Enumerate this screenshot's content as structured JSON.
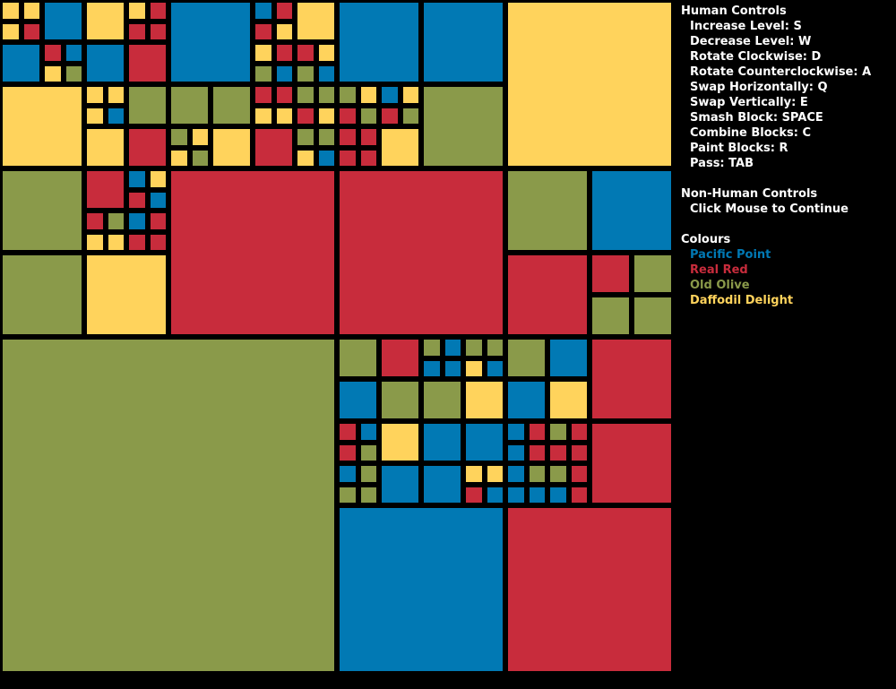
{
  "colors": {
    "blue": "#0179B4",
    "red": "#C82C3C",
    "olive": "#8A9A4A",
    "yellow": "#FFD35C",
    "background": "#000000"
  },
  "controls": {
    "human_title": "Human Controls",
    "human_items": [
      "Increase Level: S",
      "Decrease Level: W",
      "Rotate Clockwise: D",
      "Rotate Counterclockwise: A",
      "Swap Horizontally: Q",
      "Swap Vertically: E",
      "Smash Block: SPACE",
      "Combine Blocks: C",
      "Paint Blocks: R",
      "Pass: TAB"
    ],
    "nonhuman_title": "Non-Human Controls",
    "nonhuman_items": [
      "Click Mouse to Continue"
    ],
    "colours_title": "Colours",
    "colour_items": [
      {
        "label": "Pacific Point",
        "color": "#0179B4"
      },
      {
        "label": "Real Red",
        "color": "#C82C3C"
      },
      {
        "label": "Old Olive",
        "color": "#8A9A4A"
      },
      {
        "label": "Daffodil Delight",
        "color": "#FFD35C"
      }
    ]
  },
  "board": {
    "grid_cells": 32,
    "blocks": [
      [
        "a0001",
        0,
        0,
        1,
        1,
        "yellow"
      ],
      [
        "a0002",
        1,
        0,
        1,
        1,
        "yellow"
      ],
      [
        "a0003",
        2,
        0,
        2,
        2,
        "blue"
      ],
      [
        "a0004",
        0,
        1,
        1,
        1,
        "yellow"
      ],
      [
        "a0005",
        1,
        1,
        1,
        1,
        "red"
      ],
      [
        "a0006",
        0,
        2,
        2,
        2,
        "blue"
      ],
      [
        "a0007",
        2,
        2,
        1,
        1,
        "red"
      ],
      [
        "a0008",
        3,
        2,
        1,
        1,
        "blue"
      ],
      [
        "a0009",
        2,
        3,
        1,
        1,
        "yellow"
      ],
      [
        "a0010",
        3,
        3,
        1,
        1,
        "olive"
      ],
      [
        "a0011",
        4,
        0,
        2,
        2,
        "yellow"
      ],
      [
        "a0012",
        6,
        0,
        1,
        1,
        "yellow"
      ],
      [
        "a0013",
        7,
        0,
        1,
        1,
        "red"
      ],
      [
        "a0014",
        6,
        1,
        1,
        1,
        "red"
      ],
      [
        "a0015",
        7,
        1,
        1,
        1,
        "red"
      ],
      [
        "a0016",
        4,
        2,
        2,
        2,
        "blue"
      ],
      [
        "a0017",
        6,
        2,
        2,
        2,
        "red"
      ],
      [
        "a0018",
        8,
        0,
        4,
        4,
        "blue"
      ],
      [
        "a0019",
        12,
        0,
        1,
        1,
        "blue"
      ],
      [
        "a0020",
        13,
        0,
        1,
        1,
        "red"
      ],
      [
        "a0021",
        14,
        0,
        2,
        2,
        "yellow"
      ],
      [
        "a0022",
        12,
        1,
        1,
        1,
        "red"
      ],
      [
        "a0023",
        13,
        1,
        1,
        1,
        "yellow"
      ],
      [
        "a0024",
        12,
        2,
        1,
        1,
        "yellow"
      ],
      [
        "a0025",
        13,
        2,
        1,
        1,
        "red"
      ],
      [
        "a0026",
        14,
        2,
        1,
        1,
        "red"
      ],
      [
        "a0027",
        15,
        2,
        1,
        1,
        "yellow"
      ],
      [
        "a0028",
        12,
        3,
        1,
        1,
        "olive"
      ],
      [
        "a0029",
        13,
        3,
        1,
        1,
        "blue"
      ],
      [
        "a0030",
        14,
        3,
        1,
        1,
        "olive"
      ],
      [
        "a0031",
        15,
        3,
        1,
        1,
        "blue"
      ],
      [
        "a0032",
        16,
        0,
        4,
        4,
        "blue"
      ],
      [
        "a0033",
        20,
        0,
        4,
        4,
        "blue"
      ],
      [
        "a0034",
        0,
        4,
        4,
        4,
        "yellow"
      ],
      [
        "a0035",
        4,
        4,
        1,
        1,
        "yellow"
      ],
      [
        "a0036",
        5,
        4,
        1,
        1,
        "yellow"
      ],
      [
        "a0037",
        4,
        5,
        1,
        1,
        "yellow"
      ],
      [
        "a0038",
        5,
        5,
        1,
        1,
        "blue"
      ],
      [
        "a0039",
        6,
        4,
        2,
        2,
        "olive"
      ],
      [
        "a0040",
        4,
        6,
        2,
        2,
        "yellow"
      ],
      [
        "a0041",
        6,
        6,
        2,
        2,
        "red"
      ],
      [
        "a0042",
        8,
        4,
        2,
        2,
        "olive"
      ],
      [
        "a0043",
        10,
        4,
        2,
        2,
        "olive"
      ],
      [
        "a0044",
        8,
        6,
        1,
        1,
        "olive"
      ],
      [
        "a0045",
        9,
        6,
        1,
        1,
        "yellow"
      ],
      [
        "a0046",
        8,
        7,
        1,
        1,
        "yellow"
      ],
      [
        "a0047",
        9,
        7,
        1,
        1,
        "olive"
      ],
      [
        "a0048",
        10,
        6,
        2,
        2,
        "yellow"
      ],
      [
        "a0049",
        12,
        4,
        1,
        1,
        "red"
      ],
      [
        "a0050",
        13,
        4,
        1,
        1,
        "red"
      ],
      [
        "a0051",
        12,
        5,
        1,
        1,
        "yellow"
      ],
      [
        "a0052",
        13,
        5,
        1,
        1,
        "yellow"
      ],
      [
        "a0053",
        14,
        4,
        1,
        1,
        "olive"
      ],
      [
        "a0054",
        15,
        4,
        1,
        1,
        "olive"
      ],
      [
        "a0055",
        14,
        5,
        1,
        1,
        "red"
      ],
      [
        "a0056",
        15,
        5,
        1,
        1,
        "yellow"
      ],
      [
        "a0057",
        12,
        6,
        2,
        2,
        "red"
      ],
      [
        "a0058",
        14,
        6,
        1,
        1,
        "olive"
      ],
      [
        "a0059",
        15,
        6,
        1,
        1,
        "olive"
      ],
      [
        "a0060",
        14,
        7,
        1,
        1,
        "yellow"
      ],
      [
        "a0061",
        15,
        7,
        1,
        1,
        "blue"
      ],
      [
        "a0062",
        16,
        4,
        1,
        1,
        "olive"
      ],
      [
        "a0063",
        17,
        4,
        1,
        1,
        "yellow"
      ],
      [
        "a0064",
        16,
        5,
        1,
        1,
        "red"
      ],
      [
        "a0065",
        17,
        5,
        1,
        1,
        "olive"
      ],
      [
        "a0066",
        18,
        4,
        1,
        1,
        "blue"
      ],
      [
        "a0067",
        19,
        4,
        1,
        1,
        "yellow"
      ],
      [
        "a0068",
        18,
        5,
        1,
        1,
        "red"
      ],
      [
        "a0069",
        19,
        5,
        1,
        1,
        "olive"
      ],
      [
        "a0070",
        16,
        6,
        1,
        1,
        "red"
      ],
      [
        "a0071",
        17,
        6,
        1,
        1,
        "red"
      ],
      [
        "a0072",
        16,
        7,
        1,
        1,
        "red"
      ],
      [
        "a0073",
        17,
        7,
        1,
        1,
        "red"
      ],
      [
        "a0074",
        18,
        6,
        2,
        2,
        "yellow"
      ],
      [
        "a0075",
        20,
        4,
        4,
        4,
        "olive"
      ],
      [
        "a0076",
        24,
        0,
        8,
        8,
        "yellow"
      ],
      [
        "a0077",
        0,
        8,
        4,
        4,
        "olive"
      ],
      [
        "a0078",
        4,
        8,
        2,
        2,
        "red"
      ],
      [
        "a0079",
        6,
        8,
        1,
        1,
        "blue"
      ],
      [
        "a0080",
        7,
        8,
        1,
        1,
        "yellow"
      ],
      [
        "a0081",
        6,
        9,
        1,
        1,
        "red"
      ],
      [
        "a0082",
        7,
        9,
        1,
        1,
        "blue"
      ],
      [
        "a0083",
        4,
        10,
        1,
        1,
        "red"
      ],
      [
        "a0084",
        5,
        10,
        1,
        1,
        "olive"
      ],
      [
        "a0085",
        4,
        11,
        1,
        1,
        "yellow"
      ],
      [
        "a0086",
        5,
        11,
        1,
        1,
        "yellow"
      ],
      [
        "a0087",
        6,
        10,
        1,
        1,
        "blue"
      ],
      [
        "a0088",
        7,
        10,
        1,
        1,
        "red"
      ],
      [
        "a0089",
        6,
        11,
        1,
        1,
        "red"
      ],
      [
        "a0090",
        7,
        11,
        1,
        1,
        "red"
      ],
      [
        "a0091",
        0,
        12,
        4,
        4,
        "olive"
      ],
      [
        "a0092",
        4,
        12,
        4,
        4,
        "yellow"
      ],
      [
        "a0093",
        8,
        8,
        8,
        8,
        "red"
      ],
      [
        "a0094",
        16,
        8,
        8,
        8,
        "red"
      ],
      [
        "a0095",
        24,
        8,
        4,
        4,
        "olive"
      ],
      [
        "a0096",
        28,
        8,
        4,
        4,
        "blue"
      ],
      [
        "a0097",
        24,
        12,
        4,
        4,
        "red"
      ],
      [
        "a0098",
        28,
        12,
        2,
        2,
        "red"
      ],
      [
        "a0099",
        30,
        12,
        2,
        2,
        "olive"
      ],
      [
        "a0100",
        28,
        14,
        2,
        2,
        "olive"
      ],
      [
        "a0101",
        30,
        14,
        2,
        2,
        "olive"
      ],
      [
        "a0102",
        0,
        16,
        16,
        16,
        "olive"
      ],
      [
        "a0103",
        16,
        16,
        2,
        2,
        "olive"
      ],
      [
        "a0104",
        18,
        16,
        2,
        2,
        "red"
      ],
      [
        "a0105",
        20,
        16,
        1,
        1,
        "olive"
      ],
      [
        "a0106",
        21,
        16,
        1,
        1,
        "blue"
      ],
      [
        "a0107",
        20,
        17,
        1,
        1,
        "blue"
      ],
      [
        "a0108",
        21,
        17,
        1,
        1,
        "blue"
      ],
      [
        "a0109",
        22,
        16,
        1,
        1,
        "olive"
      ],
      [
        "a0110",
        23,
        16,
        1,
        1,
        "olive"
      ],
      [
        "a0111",
        22,
        17,
        1,
        1,
        "yellow"
      ],
      [
        "a0112",
        23,
        17,
        1,
        1,
        "blue"
      ],
      [
        "a0113",
        16,
        18,
        2,
        2,
        "blue"
      ],
      [
        "a0114",
        18,
        18,
        2,
        2,
        "olive"
      ],
      [
        "a0115",
        20,
        18,
        2,
        2,
        "olive"
      ],
      [
        "a0116",
        22,
        18,
        2,
        2,
        "yellow"
      ],
      [
        "a0117",
        24,
        16,
        2,
        2,
        "olive"
      ],
      [
        "a0118",
        26,
        16,
        2,
        2,
        "blue"
      ],
      [
        "a0119",
        24,
        18,
        2,
        2,
        "blue"
      ],
      [
        "a0120",
        26,
        18,
        2,
        2,
        "yellow"
      ],
      [
        "a0121",
        28,
        16,
        4,
        4,
        "red"
      ],
      [
        "a0122",
        16,
        20,
        1,
        1,
        "red"
      ],
      [
        "a0123",
        17,
        20,
        1,
        1,
        "blue"
      ],
      [
        "a0124",
        16,
        21,
        1,
        1,
        "red"
      ],
      [
        "a0125",
        17,
        21,
        1,
        1,
        "olive"
      ],
      [
        "a0126",
        16,
        22,
        1,
        1,
        "blue"
      ],
      [
        "a0127",
        17,
        22,
        1,
        1,
        "olive"
      ],
      [
        "a0128",
        16,
        23,
        1,
        1,
        "olive"
      ],
      [
        "a0129",
        17,
        23,
        1,
        1,
        "olive"
      ],
      [
        "a0130",
        18,
        20,
        2,
        2,
        "yellow"
      ],
      [
        "a0131",
        18,
        22,
        2,
        2,
        "blue"
      ],
      [
        "a0132",
        20,
        20,
        2,
        2,
        "blue"
      ],
      [
        "a0133",
        22,
        20,
        2,
        2,
        "blue"
      ],
      [
        "a0134",
        20,
        22,
        2,
        2,
        "blue"
      ],
      [
        "a0135",
        22,
        22,
        1,
        1,
        "yellow"
      ],
      [
        "a0136",
        23,
        22,
        1,
        1,
        "yellow"
      ],
      [
        "a0137",
        22,
        23,
        1,
        1,
        "red"
      ],
      [
        "a0138",
        23,
        23,
        1,
        1,
        "blue"
      ],
      [
        "a0139",
        24,
        20,
        1,
        1,
        "blue"
      ],
      [
        "a0140",
        25,
        20,
        1,
        1,
        "red"
      ],
      [
        "a0141",
        24,
        21,
        1,
        1,
        "blue"
      ],
      [
        "a0142",
        25,
        21,
        1,
        1,
        "red"
      ],
      [
        "a0143",
        26,
        20,
        1,
        1,
        "olive"
      ],
      [
        "a0144",
        27,
        20,
        1,
        1,
        "red"
      ],
      [
        "a0145",
        26,
        21,
        1,
        1,
        "red"
      ],
      [
        "a0146",
        27,
        21,
        1,
        1,
        "red"
      ],
      [
        "a0147",
        24,
        22,
        1,
        1,
        "blue"
      ],
      [
        "a0148",
        25,
        22,
        1,
        1,
        "olive"
      ],
      [
        "a0149",
        24,
        23,
        1,
        1,
        "blue"
      ],
      [
        "a0150",
        25,
        23,
        1,
        1,
        "blue"
      ],
      [
        "a0151",
        26,
        22,
        1,
        1,
        "olive"
      ],
      [
        "a0152",
        27,
        22,
        1,
        1,
        "red"
      ],
      [
        "a0153",
        26,
        23,
        1,
        1,
        "blue"
      ],
      [
        "a0154",
        27,
        23,
        1,
        1,
        "red"
      ],
      [
        "a0155",
        28,
        20,
        4,
        4,
        "red"
      ],
      [
        "a0156",
        16,
        24,
        8,
        8,
        "blue"
      ],
      [
        "a0157",
        24,
        24,
        8,
        8,
        "red"
      ]
    ]
  }
}
